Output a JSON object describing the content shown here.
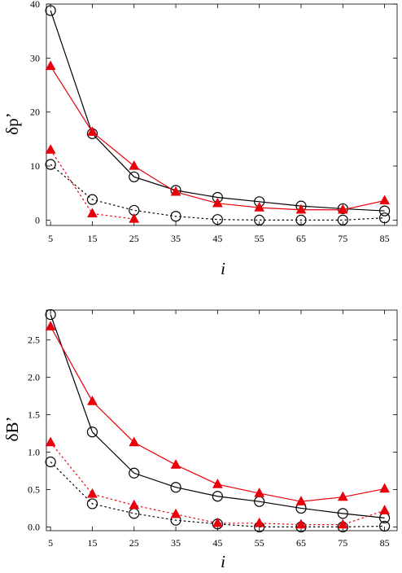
{
  "chart_data": [
    {
      "type": "line",
      "title": "",
      "xlabel": "i",
      "ylabel": "δp’",
      "x": [
        5,
        15,
        25,
        35,
        45,
        55,
        65,
        75,
        85
      ],
      "xlim": [
        4,
        88
      ],
      "ylim": [
        -1,
        40
      ],
      "xticks": [
        "5",
        "15",
        "25",
        "35",
        "45",
        "55",
        "65",
        "75",
        "85"
      ],
      "yticks": [
        "0",
        "10",
        "20",
        "30",
        "40"
      ],
      "ytick_values": [
        0,
        10,
        20,
        30,
        40
      ],
      "grid": false,
      "legend": "none",
      "series": [
        {
          "marker": "circle",
          "line": "solid",
          "color": "#000000",
          "values": [
            38.8,
            16.0,
            8.0,
            5.5,
            4.2,
            3.4,
            2.6,
            2.1,
            1.7
          ]
        },
        {
          "marker": "triangle",
          "line": "solid",
          "color": "#e8000b",
          "values": [
            28.5,
            16.3,
            10.0,
            5.2,
            3.1,
            2.3,
            1.9,
            1.9,
            3.6
          ]
        },
        {
          "marker": "circle",
          "line": "dotted",
          "color": "#000000",
          "values": [
            10.3,
            3.8,
            1.8,
            0.7,
            0.1,
            0.0,
            0.0,
            0.0,
            0.4
          ]
        },
        {
          "marker": "triangle",
          "line": "dotted",
          "color": "#e8000b",
          "values": [
            13.0,
            1.2,
            0.2,
            null,
            null,
            null,
            null,
            null,
            null
          ]
        }
      ]
    },
    {
      "type": "line",
      "title": "",
      "xlabel": "i",
      "ylabel": "δB’",
      "x": [
        5,
        15,
        25,
        35,
        45,
        55,
        65,
        75,
        85
      ],
      "xlim": [
        4,
        88
      ],
      "ylim": [
        -0.05,
        2.9
      ],
      "xticks": [
        "5",
        "15",
        "25",
        "35",
        "45",
        "55",
        "65",
        "75",
        "85"
      ],
      "yticks": [
        "0.0",
        "0.5",
        "1.0",
        "1.5",
        "2.0",
        "2.5"
      ],
      "ytick_values": [
        0,
        0.5,
        1.0,
        1.5,
        2.0,
        2.5
      ],
      "grid": false,
      "legend": "none",
      "series": [
        {
          "marker": "circle",
          "line": "solid",
          "color": "#000000",
          "values": [
            2.84,
            1.27,
            0.72,
            0.53,
            0.41,
            0.34,
            0.25,
            0.18,
            0.12
          ]
        },
        {
          "marker": "triangle",
          "line": "solid",
          "color": "#e8000b",
          "values": [
            2.68,
            1.68,
            1.13,
            0.83,
            0.57,
            0.45,
            0.34,
            0.4,
            0.51
          ]
        },
        {
          "marker": "circle",
          "line": "dotted",
          "color": "#000000",
          "values": [
            0.87,
            0.31,
            0.18,
            0.09,
            0.04,
            0.0,
            0.0,
            0.0,
            0.01
          ]
        },
        {
          "marker": "triangle",
          "line": "dotted",
          "color": "#e8000b",
          "values": [
            1.13,
            0.44,
            0.29,
            0.17,
            0.05,
            0.05,
            0.03,
            0.03,
            0.22
          ]
        }
      ]
    }
  ]
}
